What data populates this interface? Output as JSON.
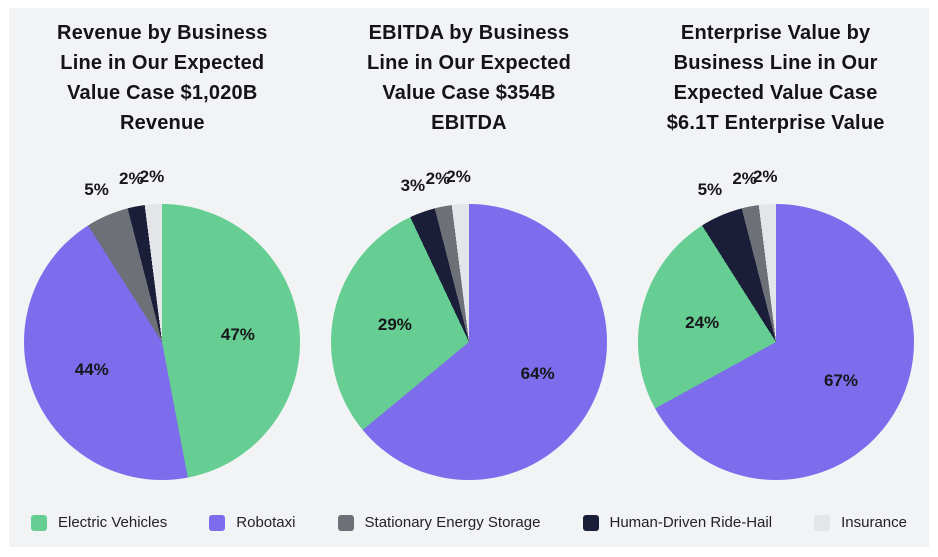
{
  "page": {
    "background": "#ffffff",
    "panel_background": "#f2f3f5",
    "text_color": "#141418",
    "value_label_color": "#17171b"
  },
  "colors": {
    "Electric Vehicles": "#66ce92",
    "Robotaxi": "#7d6cec",
    "Stationary Energy Storage": "#6e7077",
    "Human-Driven Ride-Hail": "#1b1e38",
    "Insurance": "#e4e5e8"
  },
  "chart_data": [
    {
      "type": "pie",
      "title": "Revenue by Business\nLine in Our Expected\nValue Case $1,020B\nRevenue",
      "direction": "clockwise",
      "start_angle_deg": 0,
      "slices": [
        {
          "label": "Electric Vehicles",
          "pct": 47,
          "display": "47%"
        },
        {
          "label": "Robotaxi",
          "pct": 44,
          "display": "44%"
        },
        {
          "label": "Stationary Energy Storage",
          "pct": 5,
          "display": "5%"
        },
        {
          "label": "Human-Driven Ride-Hail",
          "pct": 2,
          "display": "2%"
        },
        {
          "label": "Insurance",
          "pct": 2,
          "display": "2%"
        }
      ]
    },
    {
      "type": "pie",
      "title": "EBITDA by Business\nLine in Our Expected\nValue Case $354B\nEBITDA",
      "direction": "clockwise",
      "start_angle_deg": 0,
      "slices": [
        {
          "label": "Robotaxi",
          "pct": 64,
          "display": "64%"
        },
        {
          "label": "Electric Vehicles",
          "pct": 29,
          "display": "29%"
        },
        {
          "label": "Human-Driven Ride-Hail",
          "pct": 3,
          "display": "3%"
        },
        {
          "label": "Stationary Energy Storage",
          "pct": 2,
          "display": "2%"
        },
        {
          "label": "Insurance",
          "pct": 2,
          "display": "2%"
        }
      ]
    },
    {
      "type": "pie",
      "title": "Enterprise Value by\nBusiness Line in Our\nExpected Value Case\n$6.1T Enterprise Value",
      "direction": "clockwise",
      "start_angle_deg": 0,
      "slices": [
        {
          "label": "Robotaxi",
          "pct": 67,
          "display": "67%"
        },
        {
          "label": "Electric Vehicles",
          "pct": 24,
          "display": "24%"
        },
        {
          "label": "Human-Driven Ride-Hail",
          "pct": 5,
          "display": "5%"
        },
        {
          "label": "Stationary Energy Storage",
          "pct": 2,
          "display": "2%"
        },
        {
          "label": "Insurance",
          "pct": 2,
          "display": "2%"
        }
      ]
    }
  ],
  "legend": {
    "position": "bottom",
    "items": [
      {
        "label": "Electric Vehicles"
      },
      {
        "label": "Robotaxi"
      },
      {
        "label": "Stationary Energy Storage"
      },
      {
        "label": "Human-Driven Ride-Hail"
      },
      {
        "label": "Insurance"
      }
    ]
  }
}
